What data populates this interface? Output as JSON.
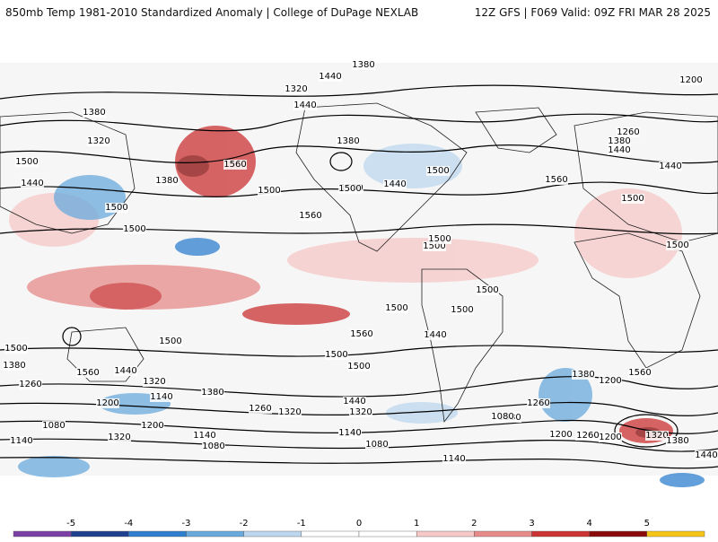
{
  "header": {
    "title_left": "850mb Temp 1981-2010 Standardized Anomaly | College of DuPage NEXLAB",
    "title_right": "12Z GFS | F069 Valid: 09Z FRI MAR 28 2025"
  },
  "map": {
    "contour_labels": [
      "1380",
      "1440",
      "1200",
      "1320",
      "1380",
      "1440",
      "1320",
      "1260",
      "1380",
      "1440",
      "1500",
      "1440",
      "1380",
      "1560",
      "1500",
      "1500",
      "1440",
      "1500",
      "1500",
      "1560",
      "1500",
      "1380",
      "1440",
      "1560",
      "1500",
      "1500",
      "1500",
      "1500",
      "1500",
      "1500",
      "1500",
      "1500",
      "1560",
      "1500",
      "1380",
      "1560",
      "1500",
      "1500",
      "1440",
      "1380",
      "1260",
      "1320",
      "1380",
      "1440",
      "1320",
      "1200",
      "1140",
      "1200",
      "1260",
      "1320",
      "1080",
      "1140",
      "1200",
      "1080",
      "1140",
      "1080",
      "1320",
      "1200",
      "1260",
      "1140",
      "1080",
      "1140",
      "1440",
      "1380",
      "1200",
      "1260",
      "1320",
      "1380",
      "1440",
      "1560",
      "1500",
      "1260",
      "1140",
      "1080",
      "1200"
    ],
    "colors": {
      "land_outline": "#222222",
      "contour": "#000000"
    }
  },
  "colorbar": {
    "ticks": [
      "-5",
      "-4",
      "-3",
      "-2",
      "-1",
      "0",
      "1",
      "2",
      "3",
      "4",
      "5"
    ],
    "colors": [
      "#7b3fa6",
      "#1f3f8f",
      "#2f7fcf",
      "#6aa9dc",
      "#bcd7ee",
      "#ffffff",
      "#ffffff",
      "#f7c8c8",
      "#e78a8a",
      "#cc3333",
      "#8b0a0a",
      "#f5c518"
    ]
  }
}
